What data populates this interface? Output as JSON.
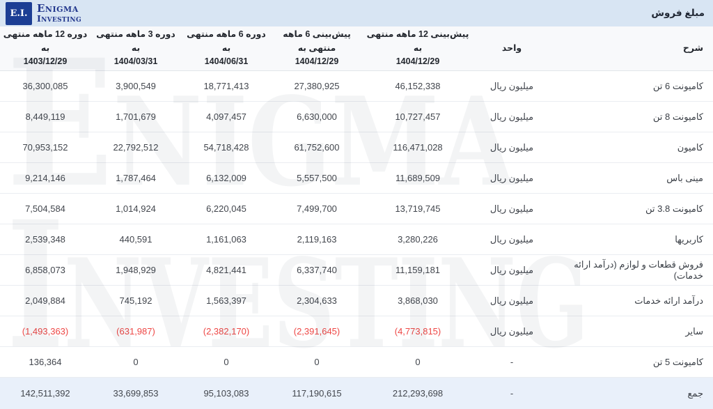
{
  "topbar": {
    "title": "مبلغ فروش",
    "logo": {
      "badge": "E.I.",
      "line1": "Enigma",
      "line2": "Investing"
    }
  },
  "watermark": {
    "line1": "Enigma",
    "line2": "Investing"
  },
  "table": {
    "headers": {
      "desc": "شرح",
      "unit": "واحد",
      "cols": [
        {
          "line1": "پیش‌بینی 12 ماهه منتهی به",
          "line2": "1404/12/29"
        },
        {
          "line1": "پیش‌بینی 6 ماهه منتهی به",
          "line2": "1404/12/29"
        },
        {
          "line1": "دوره 6 ماهه منتهی به",
          "line2": "1404/06/31"
        },
        {
          "line1": "دوره 3 ماهه منتهی به",
          "line2": "1404/03/31"
        },
        {
          "line1": "دوره 12 ماهه منتهی به",
          "line2": "1403/12/29"
        }
      ]
    },
    "rows": [
      {
        "desc": "کامیونت 6 تن",
        "unit": "میلیون ریال",
        "negative": false,
        "values": [
          "46,152,338",
          "27,380,925",
          "18,771,413",
          "3,900,549",
          "36,300,085"
        ]
      },
      {
        "desc": "کامیونت 8 تن",
        "unit": "میلیون ریال",
        "negative": false,
        "values": [
          "10,727,457",
          "6,630,000",
          "4,097,457",
          "1,701,679",
          "8,449,119"
        ]
      },
      {
        "desc": "کامیون",
        "unit": "میلیون ریال",
        "negative": false,
        "values": [
          "116,471,028",
          "61,752,600",
          "54,718,428",
          "22,792,512",
          "70,953,152"
        ]
      },
      {
        "desc": "مینی باس",
        "unit": "میلیون ریال",
        "negative": false,
        "values": [
          "11,689,509",
          "5,557,500",
          "6,132,009",
          "1,787,464",
          "9,214,146"
        ]
      },
      {
        "desc": "کامیونت 3.8 تن",
        "unit": "میلیون ریال",
        "negative": false,
        "values": [
          "13,719,745",
          "7,499,700",
          "6,220,045",
          "1,014,924",
          "7,504,584"
        ]
      },
      {
        "desc": "کاربریها",
        "unit": "میلیون ریال",
        "negative": false,
        "values": [
          "3,280,226",
          "2,119,163",
          "1,161,063",
          "440,591",
          "2,539,348"
        ]
      },
      {
        "desc": "فروش قطعات و لوازم (درآمد ارائه خدمات)",
        "unit": "میلیون ریال",
        "negative": false,
        "values": [
          "11,159,181",
          "6,337,740",
          "4,821,441",
          "1,948,929",
          "6,858,073"
        ]
      },
      {
        "desc": "درآمد ارائه خدمات",
        "unit": "میلیون ریال",
        "negative": false,
        "values": [
          "3,868,030",
          "2,304,633",
          "1,563,397",
          "745,192",
          "2,049,884"
        ]
      },
      {
        "desc": "سایر",
        "unit": "میلیون ریال",
        "negative": true,
        "values": [
          "(4,773,815)",
          "(2,391,645)",
          "(2,382,170)",
          "(631,987)",
          "(1,493,363)"
        ]
      },
      {
        "desc": "کامیونت 5 تن",
        "unit": "-",
        "negative": false,
        "values": [
          "0",
          "0",
          "0",
          "0",
          "136,364"
        ]
      }
    ],
    "total": {
      "desc": "جمع",
      "unit": "-",
      "negative": false,
      "values": [
        "212,293,698",
        "117,190,615",
        "95,103,083",
        "33,699,853",
        "142,511,392"
      ]
    }
  },
  "colors": {
    "topbar_bg": "#d8e5f3",
    "logo_badge_bg": "#1c3e94",
    "brand_navy": "#21368c",
    "header_bg": "#f8f9fb",
    "total_row_bg": "#e9f0fa",
    "negative_red": "#ee4745"
  }
}
